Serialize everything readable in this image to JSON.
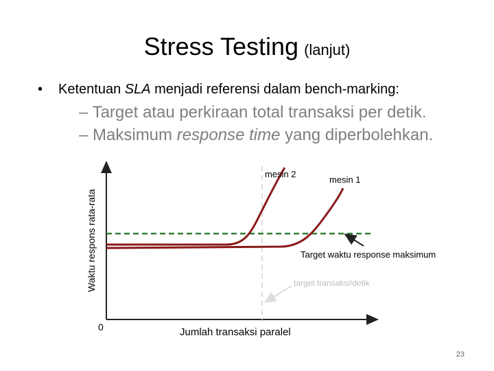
{
  "title": {
    "main": "Stress Testing",
    "suffix": "(lanjut)"
  },
  "bullets": [
    {
      "parts": [
        "Ketentuan ",
        "SLA",
        " menjadi referensi dalam bench-marking:"
      ]
    },
    {
      "parts": [
        "– Target atau perkiraan total transaksi per detik."
      ]
    },
    {
      "parts": [
        "– Maksimum ",
        "response time",
        " yang diperbolehkan."
      ]
    }
  ],
  "diagram": {
    "y_axis_label": "Waktu respons rata-rata",
    "origin_label": "0",
    "x_axis_label": "Jumlah transaksi paralel",
    "curve_labels": [
      "mesin 2",
      "mesin 1"
    ],
    "target_response_label": "Target waktu response maksimum",
    "target_throughput_label": "target transaksi/detik"
  },
  "page_number": "23"
}
